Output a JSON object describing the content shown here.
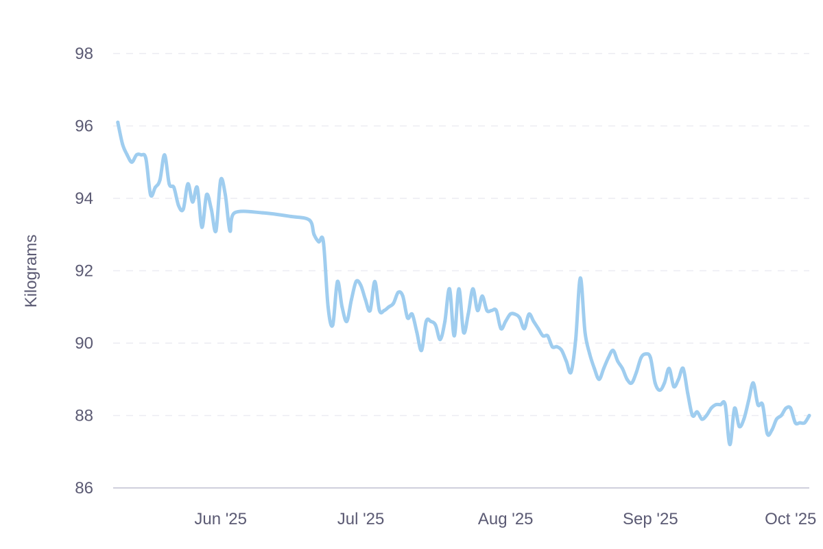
{
  "chart_data": {
    "type": "line",
    "title": "",
    "xlabel": "",
    "ylabel": "Kilograms",
    "ylim": [
      86,
      98
    ],
    "yticks": [
      86,
      88,
      90,
      92,
      94,
      96,
      98
    ],
    "xlim": [
      "2025-05-09",
      "2025-10-05"
    ],
    "xticks": [
      {
        "date": "2025-06-01",
        "label": "Jun '25"
      },
      {
        "date": "2025-07-01",
        "label": "Jul '25"
      },
      {
        "date": "2025-08-01",
        "label": "Aug '25"
      },
      {
        "date": "2025-09-01",
        "label": "Sep '25"
      },
      {
        "date": "2025-10-01",
        "label": "Oct '25"
      }
    ],
    "grid": true,
    "legend": "none",
    "colors": {
      "series": "#9fcdef",
      "text": "#5b5a73",
      "grid": "#ececf2"
    },
    "series": [
      {
        "name": "",
        "points": [
          [
            "2025-05-10",
            96.1
          ],
          [
            "2025-05-11",
            95.5
          ],
          [
            "2025-05-12",
            95.2
          ],
          [
            "2025-05-13",
            95.0
          ],
          [
            "2025-05-14",
            95.2
          ],
          [
            "2025-05-15",
            95.2
          ],
          [
            "2025-05-16",
            95.1
          ],
          [
            "2025-05-17",
            94.1
          ],
          [
            "2025-05-18",
            94.3
          ],
          [
            "2025-05-19",
            94.5
          ],
          [
            "2025-05-20",
            95.2
          ],
          [
            "2025-05-21",
            94.4
          ],
          [
            "2025-05-22",
            94.3
          ],
          [
            "2025-05-23",
            93.8
          ],
          [
            "2025-05-24",
            93.7
          ],
          [
            "2025-05-25",
            94.4
          ],
          [
            "2025-05-26",
            93.9
          ],
          [
            "2025-05-27",
            94.3
          ],
          [
            "2025-05-28",
            93.2
          ],
          [
            "2025-05-29",
            94.1
          ],
          [
            "2025-05-30",
            93.7
          ],
          [
            "2025-05-31",
            93.1
          ],
          [
            "2025-06-01",
            94.5
          ],
          [
            "2025-06-02",
            94.1
          ],
          [
            "2025-06-03",
            93.1
          ],
          [
            "2025-06-04",
            93.6
          ],
          [
            "2025-06-10",
            93.6
          ],
          [
            "2025-06-16",
            93.5
          ],
          [
            "2025-06-20",
            93.4
          ],
          [
            "2025-06-21",
            93.0
          ],
          [
            "2025-06-22",
            92.8
          ],
          [
            "2025-06-23",
            92.8
          ],
          [
            "2025-06-24",
            91.0
          ],
          [
            "2025-06-25",
            90.5
          ],
          [
            "2025-06-26",
            91.7
          ],
          [
            "2025-06-27",
            91.0
          ],
          [
            "2025-06-28",
            90.6
          ],
          [
            "2025-06-29",
            91.2
          ],
          [
            "2025-06-30",
            91.7
          ],
          [
            "2025-07-01",
            91.6
          ],
          [
            "2025-07-02",
            91.2
          ],
          [
            "2025-07-03",
            90.9
          ],
          [
            "2025-07-04",
            91.7
          ],
          [
            "2025-07-05",
            90.9
          ],
          [
            "2025-07-06",
            90.9
          ],
          [
            "2025-07-07",
            91.0
          ],
          [
            "2025-07-08",
            91.1
          ],
          [
            "2025-07-09",
            91.4
          ],
          [
            "2025-07-10",
            91.3
          ],
          [
            "2025-07-11",
            90.7
          ],
          [
            "2025-07-12",
            90.8
          ],
          [
            "2025-07-13",
            90.3
          ],
          [
            "2025-07-14",
            89.8
          ],
          [
            "2025-07-15",
            90.6
          ],
          [
            "2025-07-16",
            90.6
          ],
          [
            "2025-07-17",
            90.5
          ],
          [
            "2025-07-18",
            90.1
          ],
          [
            "2025-07-19",
            90.6
          ],
          [
            "2025-07-20",
            91.5
          ],
          [
            "2025-07-21",
            90.2
          ],
          [
            "2025-07-22",
            91.5
          ],
          [
            "2025-07-23",
            90.3
          ],
          [
            "2025-07-24",
            90.8
          ],
          [
            "2025-07-25",
            91.5
          ],
          [
            "2025-07-26",
            90.9
          ],
          [
            "2025-07-27",
            91.3
          ],
          [
            "2025-07-28",
            90.9
          ],
          [
            "2025-07-29",
            90.9
          ],
          [
            "2025-07-30",
            90.9
          ],
          [
            "2025-07-31",
            90.4
          ],
          [
            "2025-08-01",
            90.6
          ],
          [
            "2025-08-02",
            90.8
          ],
          [
            "2025-08-03",
            90.8
          ],
          [
            "2025-08-04",
            90.7
          ],
          [
            "2025-08-05",
            90.4
          ],
          [
            "2025-08-06",
            90.8
          ],
          [
            "2025-08-07",
            90.6
          ],
          [
            "2025-08-08",
            90.4
          ],
          [
            "2025-08-09",
            90.2
          ],
          [
            "2025-08-10",
            90.2
          ],
          [
            "2025-08-11",
            89.9
          ],
          [
            "2025-08-12",
            89.9
          ],
          [
            "2025-08-13",
            89.8
          ],
          [
            "2025-08-14",
            89.5
          ],
          [
            "2025-08-15",
            89.2
          ],
          [
            "2025-08-16",
            90.1
          ],
          [
            "2025-08-17",
            91.8
          ],
          [
            "2025-08-18",
            90.3
          ],
          [
            "2025-08-19",
            89.7
          ],
          [
            "2025-08-20",
            89.3
          ],
          [
            "2025-08-21",
            89.0
          ],
          [
            "2025-08-22",
            89.3
          ],
          [
            "2025-08-23",
            89.6
          ],
          [
            "2025-08-24",
            89.8
          ],
          [
            "2025-08-25",
            89.5
          ],
          [
            "2025-08-26",
            89.3
          ],
          [
            "2025-08-27",
            89.0
          ],
          [
            "2025-08-28",
            88.9
          ],
          [
            "2025-08-29",
            89.2
          ],
          [
            "2025-08-30",
            89.6
          ],
          [
            "2025-08-31",
            89.7
          ],
          [
            "2025-09-01",
            89.6
          ],
          [
            "2025-09-02",
            88.9
          ],
          [
            "2025-09-03",
            88.7
          ],
          [
            "2025-09-04",
            88.9
          ],
          [
            "2025-09-05",
            89.3
          ],
          [
            "2025-09-06",
            88.8
          ],
          [
            "2025-09-07",
            89.0
          ],
          [
            "2025-09-08",
            89.3
          ],
          [
            "2025-09-09",
            88.6
          ],
          [
            "2025-09-10",
            88.0
          ],
          [
            "2025-09-11",
            88.1
          ],
          [
            "2025-09-12",
            87.9
          ],
          [
            "2025-09-13",
            88.0
          ],
          [
            "2025-09-14",
            88.2
          ],
          [
            "2025-09-15",
            88.3
          ],
          [
            "2025-09-16",
            88.3
          ],
          [
            "2025-09-17",
            88.3
          ],
          [
            "2025-09-18",
            87.2
          ],
          [
            "2025-09-19",
            88.2
          ],
          [
            "2025-09-20",
            87.7
          ],
          [
            "2025-09-21",
            87.9
          ],
          [
            "2025-09-22",
            88.4
          ],
          [
            "2025-09-23",
            88.9
          ],
          [
            "2025-09-24",
            88.3
          ],
          [
            "2025-09-25",
            88.3
          ],
          [
            "2025-09-26",
            87.5
          ],
          [
            "2025-09-27",
            87.6
          ],
          [
            "2025-09-28",
            87.9
          ],
          [
            "2025-09-29",
            88.0
          ],
          [
            "2025-09-30",
            88.2
          ],
          [
            "2025-10-01",
            88.2
          ],
          [
            "2025-10-02",
            87.8
          ],
          [
            "2025-10-03",
            87.8
          ],
          [
            "2025-10-04",
            87.8
          ],
          [
            "2025-10-05",
            88.0
          ]
        ]
      }
    ]
  }
}
